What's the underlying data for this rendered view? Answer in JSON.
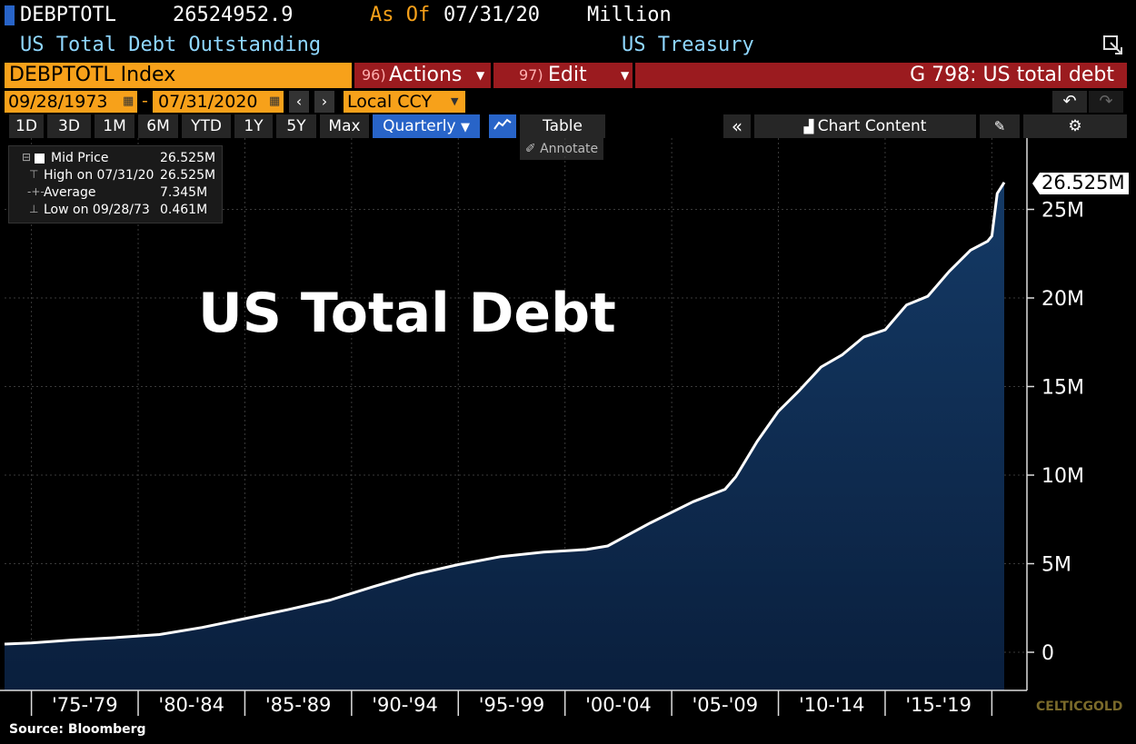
{
  "header": {
    "ticker": "DEBPTOTL",
    "value": "26524952.9",
    "as_of_label": "As Of",
    "as_of_date": "07/31/20",
    "unit": "Million",
    "description": "US Total Debt Outstanding",
    "source_name": "US Treasury"
  },
  "toolbar": {
    "security": "DEBPTOTL Index",
    "actions_num": "96)",
    "actions_label": "Actions",
    "edit_num": "97)",
    "edit_label": "Edit",
    "chart_title": "G 798: US total debt",
    "start_date": "09/28/1973",
    "dash": "-",
    "end_date": "07/31/2020",
    "currency": "Local CCY"
  },
  "ranges": [
    "1D",
    "3D",
    "1M",
    "6M",
    "YTD",
    "1Y",
    "5Y",
    "Max"
  ],
  "frequency": "Quarterly",
  "table_label": "Table",
  "annotate_label": "Annotate",
  "chart_content_label": "Chart Content",
  "legend": {
    "mid_label": "Mid Price",
    "mid_value": "26.525M",
    "high_label": "High on 07/31/20",
    "high_value": "26.525M",
    "avg_label": "Average",
    "avg_value": "7.345M",
    "low_label": "Low on 09/28/73",
    "low_value": "0.461M"
  },
  "last_value_tag": "26.525M",
  "overlay_title": "US Total Debt",
  "source_note": "Source: Bloomberg",
  "watermark": "CELTICGOLD",
  "colors": {
    "background": "#000000",
    "area_fill_top": "#143a66",
    "area_fill_bottom": "#0a1f3d",
    "line": "#ffffff",
    "orange": "#f7a11a",
    "red": "#9b1b1f",
    "cyan_text": "#8fd7ff",
    "selected_blue": "#2864c8"
  },
  "chart_data": {
    "type": "area",
    "title": "US Total Debt",
    "x_tick_labels": [
      "'75-'79",
      "'80-'84",
      "'85-'89",
      "'90-'94",
      "'95-'99",
      "'00-'04",
      "'05-'09",
      "'10-'14",
      "'15-'19"
    ],
    "y_tick_labels": [
      "0",
      "5M",
      "10M",
      "15M",
      "20M",
      "25M"
    ],
    "ylim": [
      0,
      27000000
    ],
    "xlim": [
      1973.7,
      2020.6
    ],
    "grid": true,
    "series": [
      {
        "x": [
          1973.74,
          1975,
          1977,
          1979,
          1981,
          1983,
          1985,
          1987,
          1989,
          1991,
          1993,
          1995,
          1997,
          1999,
          2001,
          2002,
          2004,
          2006,
          2007.5,
          2008,
          2009,
          2010,
          2011,
          2012,
          2013,
          2014,
          2015,
          2016,
          2017,
          2018,
          2019,
          2019.8,
          2020.0,
          2020.25,
          2020.58
        ],
        "y": [
          461000,
          530000,
          700000,
          830000,
          1000000,
          1400000,
          1900000,
          2400000,
          2950000,
          3700000,
          4400000,
          4950000,
          5400000,
          5650000,
          5800000,
          6000000,
          7300000,
          8500000,
          9200000,
          9900000,
          11900000,
          13600000,
          14800000,
          16100000,
          16800000,
          17800000,
          18200000,
          19600000,
          20100000,
          21500000,
          22700000,
          23200000,
          23500000,
          25900000,
          26524952.9
        ]
      }
    ]
  }
}
